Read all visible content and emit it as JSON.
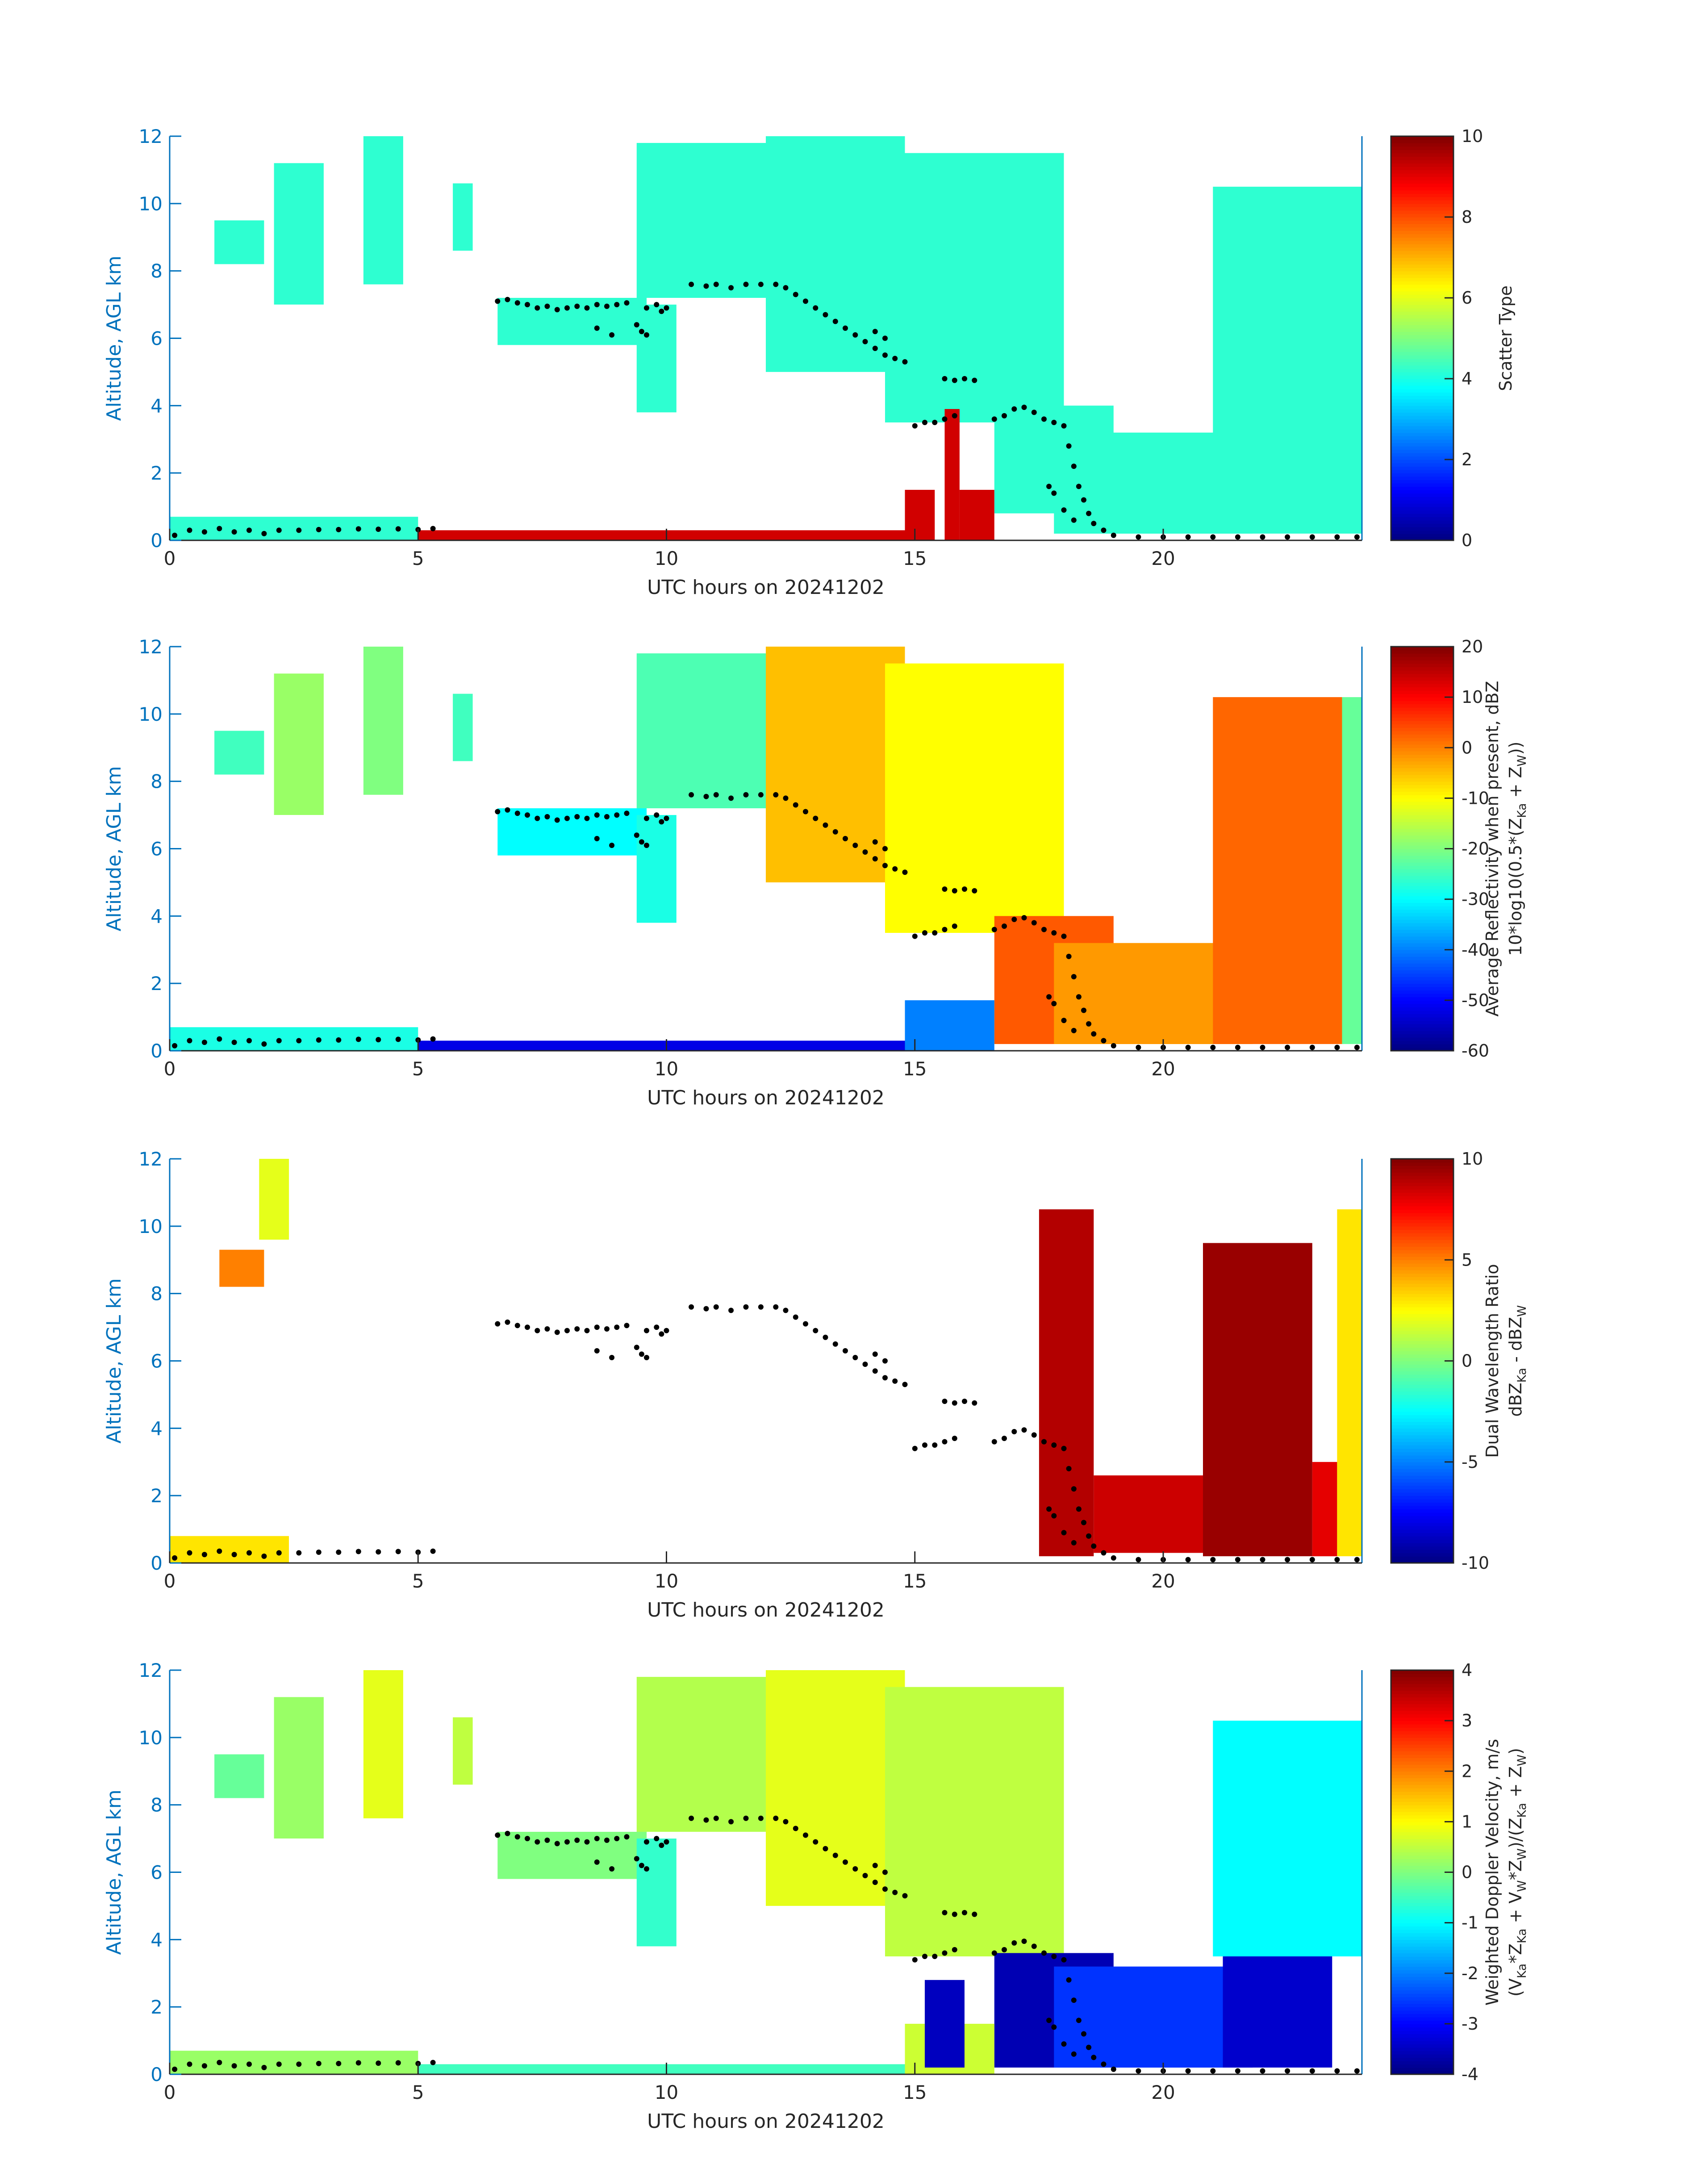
{
  "chart_data": [
    {
      "type": "heatmap",
      "xlabel": "UTC hours on 20241202",
      "ylabel": "Altitude, AGL km",
      "xlim": [
        0,
        24
      ],
      "ylim": [
        0,
        12
      ],
      "xticks": [
        "0",
        "5",
        "10",
        "15",
        "20"
      ],
      "yticks": [
        "0",
        "2",
        "4",
        "6",
        "8",
        "10",
        "12"
      ],
      "colorbar": {
        "label_lines": [
          "Scatter Type"
        ],
        "range": [
          0,
          10
        ],
        "ticks": [
          "0",
          "2",
          "4",
          "6",
          "8",
          "10"
        ]
      },
      "colormap": "jet",
      "regions": [
        {
          "t0": 0,
          "t1": 5,
          "z0": 0,
          "z1": 0.7,
          "v": 4.2
        },
        {
          "t0": 0.9,
          "t1": 1.9,
          "z0": 8.2,
          "z1": 9.5,
          "v": 4.2
        },
        {
          "t0": 2.1,
          "t1": 3.1,
          "z0": 7.0,
          "z1": 11.2,
          "v": 4.2
        },
        {
          "t0": 3.9,
          "t1": 4.7,
          "z0": 7.6,
          "z1": 12,
          "v": 4.2
        },
        {
          "t0": 5.7,
          "t1": 6.1,
          "z0": 8.6,
          "z1": 10.6,
          "v": 4.2
        },
        {
          "t0": 6.6,
          "t1": 9.6,
          "z0": 5.8,
          "z1": 7.2,
          "v": 4.2
        },
        {
          "t0": 9.4,
          "t1": 10.2,
          "z0": 3.8,
          "z1": 7.0,
          "v": 4.2
        },
        {
          "t0": 9.4,
          "t1": 12.2,
          "z0": 7.2,
          "z1": 11.8,
          "v": 4.2
        },
        {
          "t0": 12.0,
          "t1": 14.8,
          "z0": 5.0,
          "z1": 12,
          "v": 4.2
        },
        {
          "t0": 14.4,
          "t1": 18.0,
          "z0": 3.5,
          "z1": 11.5,
          "v": 4.2
        },
        {
          "t0": 16.6,
          "t1": 19.0,
          "z0": 0.8,
          "z1": 4.0,
          "v": 4.2
        },
        {
          "t0": 17.8,
          "t1": 21.8,
          "z0": 0.2,
          "z1": 3.2,
          "v": 4.2
        },
        {
          "t0": 21.0,
          "t1": 24.0,
          "z0": 0.2,
          "z1": 10.5,
          "v": 4.2
        },
        {
          "t0": 5,
          "t1": 14.8,
          "z0": 0,
          "z1": 0.3,
          "v": 9.2
        },
        {
          "t0": 14.8,
          "t1": 15.4,
          "z0": 0,
          "z1": 1.5,
          "v": 9.2
        },
        {
          "t0": 15.6,
          "t1": 15.9,
          "z0": 0,
          "z1": 3.9,
          "v": 9.2
        },
        {
          "t0": 15.9,
          "t1": 16.6,
          "z0": 0,
          "z1": 1.5,
          "v": 9.2
        }
      ]
    },
    {
      "type": "heatmap",
      "xlabel": "UTC hours on 20241202",
      "ylabel": "Altitude, AGL km",
      "xlim": [
        0,
        24
      ],
      "ylim": [
        0,
        12
      ],
      "xticks": [
        "0",
        "5",
        "10",
        "15",
        "20"
      ],
      "yticks": [
        "0",
        "2",
        "4",
        "6",
        "8",
        "10",
        "12"
      ],
      "colorbar": {
        "label_lines": [
          "Average Reflectivity when present, dBZ",
          "10*log10(0.5*(Z_Ka + Z_W))"
        ],
        "range": [
          -60,
          20
        ],
        "ticks": [
          "-60",
          "-50",
          "-40",
          "-30",
          "-20",
          "-10",
          "0",
          "10",
          "20"
        ]
      },
      "colormap": "jet",
      "regions": [
        {
          "t0": 0,
          "t1": 5,
          "z0": 0,
          "z1": 0.7,
          "v": -28
        },
        {
          "t0": 0.9,
          "t1": 1.9,
          "z0": 8.2,
          "z1": 9.5,
          "v": -25
        },
        {
          "t0": 2.1,
          "t1": 3.1,
          "z0": 7.0,
          "z1": 11.2,
          "v": -18
        },
        {
          "t0": 3.9,
          "t1": 4.7,
          "z0": 7.6,
          "z1": 12,
          "v": -20
        },
        {
          "t0": 5.7,
          "t1": 6.1,
          "z0": 8.6,
          "z1": 10.6,
          "v": -25
        },
        {
          "t0": 6.6,
          "t1": 9.6,
          "z0": 5.8,
          "z1": 7.2,
          "v": -30
        },
        {
          "t0": 9.4,
          "t1": 10.2,
          "z0": 3.8,
          "z1": 7.0,
          "v": -28
        },
        {
          "t0": 9.4,
          "t1": 12.2,
          "z0": 7.2,
          "z1": 11.8,
          "v": -24
        },
        {
          "t0": 12.0,
          "t1": 14.8,
          "z0": 5.0,
          "z1": 12,
          "v": -5
        },
        {
          "t0": 14.4,
          "t1": 18.0,
          "z0": 3.5,
          "z1": 11.5,
          "v": -10
        },
        {
          "t0": 16.6,
          "t1": 19.0,
          "z0": 0.2,
          "z1": 4.0,
          "v": 3
        },
        {
          "t0": 17.8,
          "t1": 21.8,
          "z0": 0.2,
          "z1": 3.2,
          "v": -2
        },
        {
          "t0": 21.0,
          "t1": 23.6,
          "z0": 0.2,
          "z1": 10.5,
          "v": 2
        },
        {
          "t0": 23.6,
          "t1": 24.0,
          "z0": 0.2,
          "z1": 10.5,
          "v": -22
        },
        {
          "t0": 5,
          "t1": 14.8,
          "z0": 0,
          "z1": 0.3,
          "v": -52
        },
        {
          "t0": 14.8,
          "t1": 16.6,
          "z0": 0,
          "z1": 1.5,
          "v": -40
        }
      ]
    },
    {
      "type": "heatmap",
      "xlabel": "UTC hours on 20241202",
      "ylabel": "Altitude, AGL km",
      "xlim": [
        0,
        24
      ],
      "ylim": [
        0,
        12
      ],
      "xticks": [
        "0",
        "5",
        "10",
        "15",
        "20"
      ],
      "yticks": [
        "0",
        "2",
        "4",
        "6",
        "8",
        "10",
        "12"
      ],
      "colorbar": {
        "label_lines": [
          "Dual Wavelength Ratio",
          "dBZ_Ka - dBZ_W"
        ],
        "range": [
          -10,
          10
        ],
        "ticks": [
          "-10",
          "-5",
          "0",
          "5",
          "10"
        ]
      },
      "colormap": "jet",
      "regions": [
        {
          "t0": 0,
          "t1": 2.4,
          "z0": 0,
          "z1": 0.8,
          "v": 3
        },
        {
          "t0": 1.0,
          "t1": 1.9,
          "z0": 8.2,
          "z1": 9.3,
          "v": 5
        },
        {
          "t0": 1.8,
          "t1": 2.4,
          "z0": 9.6,
          "z1": 12,
          "v": 2
        },
        {
          "t0": 17.5,
          "t1": 18.6,
          "z0": 0.2,
          "z1": 10.5,
          "v": 9
        },
        {
          "t0": 18.6,
          "t1": 20.8,
          "z0": 0.3,
          "z1": 2.6,
          "v": 8.5
        },
        {
          "t0": 20.8,
          "t1": 23.0,
          "z0": 0.2,
          "z1": 9.5,
          "v": 9.5
        },
        {
          "t0": 23.0,
          "t1": 23.5,
          "z0": 0.2,
          "z1": 3.0,
          "v": 8
        },
        {
          "t0": 23.5,
          "t1": 24.0,
          "z0": 0.2,
          "z1": 10.5,
          "v": 3
        }
      ]
    },
    {
      "type": "heatmap",
      "xlabel": "UTC hours on 20241202",
      "ylabel": "Altitude, AGL km",
      "xlim": [
        0,
        24
      ],
      "ylim": [
        0,
        12
      ],
      "xticks": [
        "0",
        "5",
        "10",
        "15",
        "20"
      ],
      "yticks": [
        "0",
        "2",
        "4",
        "6",
        "8",
        "10",
        "12"
      ],
      "colorbar": {
        "label_lines": [
          "Weighted Doppler Velocity, m/s",
          "(V_Ka*Z_Ka + V_W*Z_W)/(Z_Ka + Z_W)"
        ],
        "range": [
          -4,
          4
        ],
        "ticks": [
          "-4",
          "-3",
          "-2",
          "-1",
          "0",
          "1",
          "2",
          "3",
          "4"
        ]
      },
      "colormap": "jet",
      "regions": [
        {
          "t0": 0,
          "t1": 5,
          "z0": 0,
          "z1": 0.7,
          "v": 0.2
        },
        {
          "t0": 0.9,
          "t1": 1.9,
          "z0": 8.2,
          "z1": 9.5,
          "v": -0.2
        },
        {
          "t0": 2.1,
          "t1": 3.1,
          "z0": 7.0,
          "z1": 11.2,
          "v": 0.2
        },
        {
          "t0": 3.9,
          "t1": 4.7,
          "z0": 7.6,
          "z1": 12,
          "v": 0.8
        },
        {
          "t0": 5.7,
          "t1": 6.1,
          "z0": 8.6,
          "z1": 10.6,
          "v": 0.5
        },
        {
          "t0": 6.6,
          "t1": 9.6,
          "z0": 5.8,
          "z1": 7.2,
          "v": 0
        },
        {
          "t0": 9.4,
          "t1": 10.2,
          "z0": 3.8,
          "z1": 7.0,
          "v": -0.6
        },
        {
          "t0": 9.4,
          "t1": 12.2,
          "z0": 7.2,
          "z1": 11.8,
          "v": 0.4
        },
        {
          "t0": 12.0,
          "t1": 14.8,
          "z0": 5.0,
          "z1": 12,
          "v": 0.8
        },
        {
          "t0": 14.4,
          "t1": 18.0,
          "z0": 3.5,
          "z1": 11.5,
          "v": 0.5
        },
        {
          "t0": 16.6,
          "t1": 19.0,
          "z0": 0.2,
          "z1": 3.6,
          "v": -3.6
        },
        {
          "t0": 17.8,
          "t1": 21.8,
          "z0": 0.2,
          "z1": 3.2,
          "v": -2.6
        },
        {
          "t0": 21.0,
          "t1": 24.0,
          "z0": 3.5,
          "z1": 10.5,
          "v": -1
        },
        {
          "t0": 21.2,
          "t1": 23.4,
          "z0": 0.2,
          "z1": 3.5,
          "v": -3.4
        },
        {
          "t0": 5,
          "t1": 14.8,
          "z0": 0,
          "z1": 0.3,
          "v": -0.5
        },
        {
          "t0": 14.8,
          "t1": 16.6,
          "z0": 0,
          "z1": 1.5,
          "v": 0.6
        },
        {
          "t0": 15.2,
          "t1": 16.0,
          "z0": 0.2,
          "z1": 2.8,
          "v": -3.5
        }
      ]
    }
  ],
  "overlay": {
    "name": "cloud base/top markers",
    "color": "#000000",
    "points": [
      [
        0.1,
        0.15
      ],
      [
        0.4,
        0.3
      ],
      [
        0.7,
        0.25
      ],
      [
        1.0,
        0.35
      ],
      [
        1.3,
        0.25
      ],
      [
        1.6,
        0.3
      ],
      [
        1.9,
        0.2
      ],
      [
        2.2,
        0.3
      ],
      [
        2.6,
        0.3
      ],
      [
        3.0,
        0.32
      ],
      [
        3.4,
        0.32
      ],
      [
        3.8,
        0.34
      ],
      [
        4.2,
        0.33
      ],
      [
        4.6,
        0.34
      ],
      [
        5.0,
        0.32
      ],
      [
        5.3,
        0.35
      ],
      [
        6.6,
        7.1
      ],
      [
        6.8,
        7.15
      ],
      [
        7.0,
        7.05
      ],
      [
        7.2,
        7.0
      ],
      [
        7.4,
        6.9
      ],
      [
        7.6,
        6.95
      ],
      [
        7.8,
        6.85
      ],
      [
        8.0,
        6.9
      ],
      [
        8.2,
        6.95
      ],
      [
        8.4,
        6.9
      ],
      [
        8.6,
        7.0
      ],
      [
        8.8,
        6.95
      ],
      [
        9.0,
        7.0
      ],
      [
        9.2,
        7.05
      ],
      [
        8.6,
        6.3
      ],
      [
        8.9,
        6.1
      ],
      [
        9.4,
        6.4
      ],
      [
        9.5,
        6.2
      ],
      [
        9.6,
        6.1
      ],
      [
        9.6,
        6.9
      ],
      [
        9.8,
        7.0
      ],
      [
        9.9,
        6.8
      ],
      [
        10.0,
        6.9
      ],
      [
        10.5,
        7.6
      ],
      [
        10.8,
        7.55
      ],
      [
        11.0,
        7.6
      ],
      [
        11.3,
        7.5
      ],
      [
        11.6,
        7.6
      ],
      [
        11.9,
        7.6
      ],
      [
        12.2,
        7.6
      ],
      [
        12.4,
        7.5
      ],
      [
        12.6,
        7.3
      ],
      [
        12.8,
        7.1
      ],
      [
        13.0,
        6.9
      ],
      [
        13.2,
        6.7
      ],
      [
        13.4,
        6.5
      ],
      [
        13.6,
        6.3
      ],
      [
        13.8,
        6.1
      ],
      [
        14.0,
        5.9
      ],
      [
        14.2,
        5.7
      ],
      [
        14.4,
        5.5
      ],
      [
        14.6,
        5.4
      ],
      [
        14.8,
        5.3
      ],
      [
        14.2,
        6.2
      ],
      [
        14.4,
        6.0
      ],
      [
        15.0,
        3.4
      ],
      [
        15.2,
        3.5
      ],
      [
        15.4,
        3.5
      ],
      [
        15.6,
        3.6
      ],
      [
        15.8,
        3.7
      ],
      [
        15.6,
        4.8
      ],
      [
        15.8,
        4.75
      ],
      [
        16.0,
        4.8
      ],
      [
        16.2,
        4.75
      ],
      [
        16.6,
        3.6
      ],
      [
        16.8,
        3.7
      ],
      [
        17.0,
        3.9
      ],
      [
        17.2,
        3.95
      ],
      [
        17.4,
        3.8
      ],
      [
        17.6,
        3.6
      ],
      [
        17.8,
        3.5
      ],
      [
        18.0,
        3.4
      ],
      [
        18.1,
        2.8
      ],
      [
        18.2,
        2.2
      ],
      [
        18.3,
        1.6
      ],
      [
        18.4,
        1.2
      ],
      [
        18.5,
        0.8
      ],
      [
        18.6,
        0.5
      ],
      [
        17.7,
        1.6
      ],
      [
        17.8,
        1.4
      ],
      [
        18.0,
        0.9
      ],
      [
        18.2,
        0.6
      ],
      [
        18.8,
        0.3
      ],
      [
        19.0,
        0.15
      ],
      [
        19.5,
        0.1
      ],
      [
        20.0,
        0.1
      ],
      [
        20.5,
        0.1
      ],
      [
        21.0,
        0.1
      ],
      [
        21.5,
        0.1
      ],
      [
        22.0,
        0.1
      ],
      [
        22.5,
        0.1
      ],
      [
        23.0,
        0.1
      ],
      [
        23.5,
        0.1
      ],
      [
        23.9,
        0.1
      ]
    ]
  }
}
